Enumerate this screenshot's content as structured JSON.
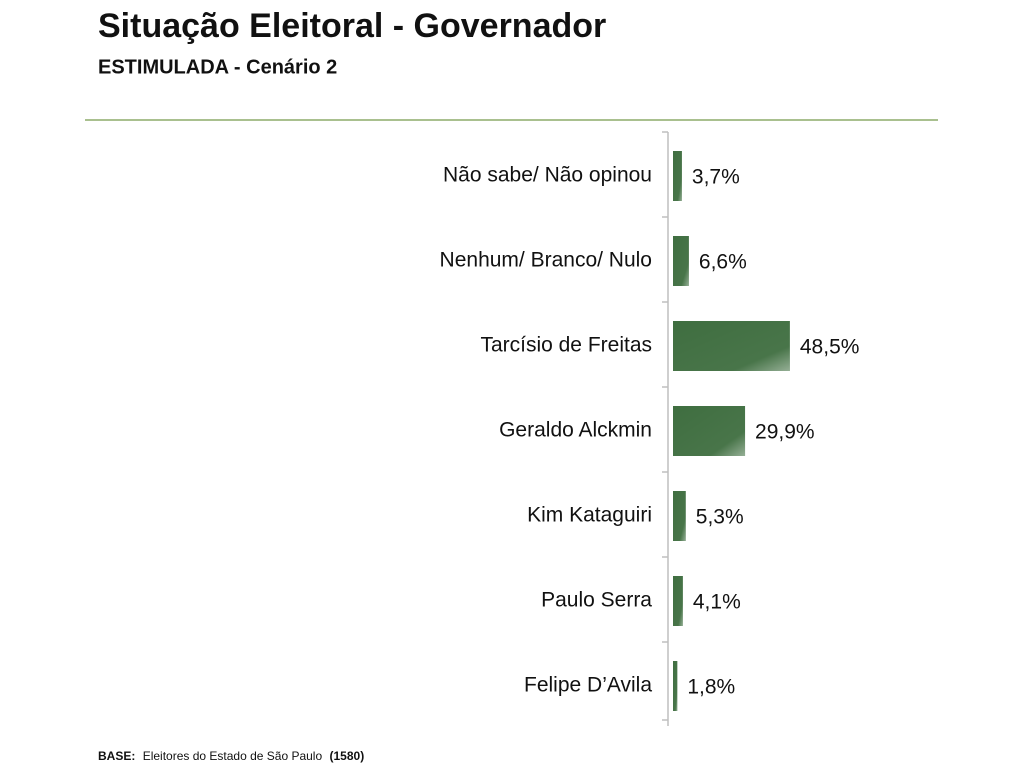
{
  "chart_data": {
    "type": "bar",
    "orientation": "horizontal",
    "title": "Situação Eleitoral - Governador",
    "subtitle": "ESTIMULADA - Cenário 2",
    "categories": [
      "Não sabe/ Não opinou",
      "Nenhum/ Branco/ Nulo",
      "Tarcísio de Freitas",
      "Geraldo Alckmin",
      "Kim Kataguiri",
      "Paulo Serra",
      "Felipe D’Avila"
    ],
    "values": [
      3.7,
      6.6,
      48.5,
      29.9,
      5.3,
      4.1,
      1.8
    ],
    "value_labels": [
      "3,7%",
      "6,6%",
      "48,5%",
      "29,9%",
      "5,3%",
      "4,1%",
      "1,8%"
    ],
    "color": "#3f6e40",
    "note": {
      "label": "BASE:",
      "text": "Eleitores do Estado de São Paulo",
      "count": "(1580)"
    }
  }
}
